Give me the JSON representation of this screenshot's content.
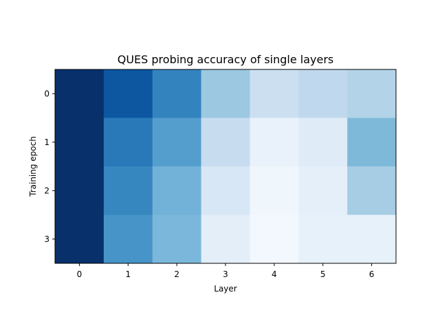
{
  "chart_data": {
    "type": "heatmap",
    "title": "QUES probing accuracy of single layers",
    "xlabel": "Layer",
    "ylabel": "Training epoch",
    "x_categories": [
      "0",
      "1",
      "2",
      "3",
      "4",
      "5",
      "6"
    ],
    "y_categories": [
      "0",
      "1",
      "2",
      "3"
    ],
    "colormap": "Blues",
    "value_range": [
      0,
      1
    ],
    "values": [
      [
        1.0,
        0.85,
        0.68,
        0.38,
        0.22,
        0.27,
        0.31
      ],
      [
        1.0,
        0.72,
        0.57,
        0.24,
        0.07,
        0.12,
        0.45
      ],
      [
        1.0,
        0.67,
        0.48,
        0.16,
        0.04,
        0.09,
        0.35
      ],
      [
        1.0,
        0.61,
        0.46,
        0.1,
        0.02,
        0.08,
        0.08
      ]
    ],
    "grid": false,
    "colorbar": false
  }
}
